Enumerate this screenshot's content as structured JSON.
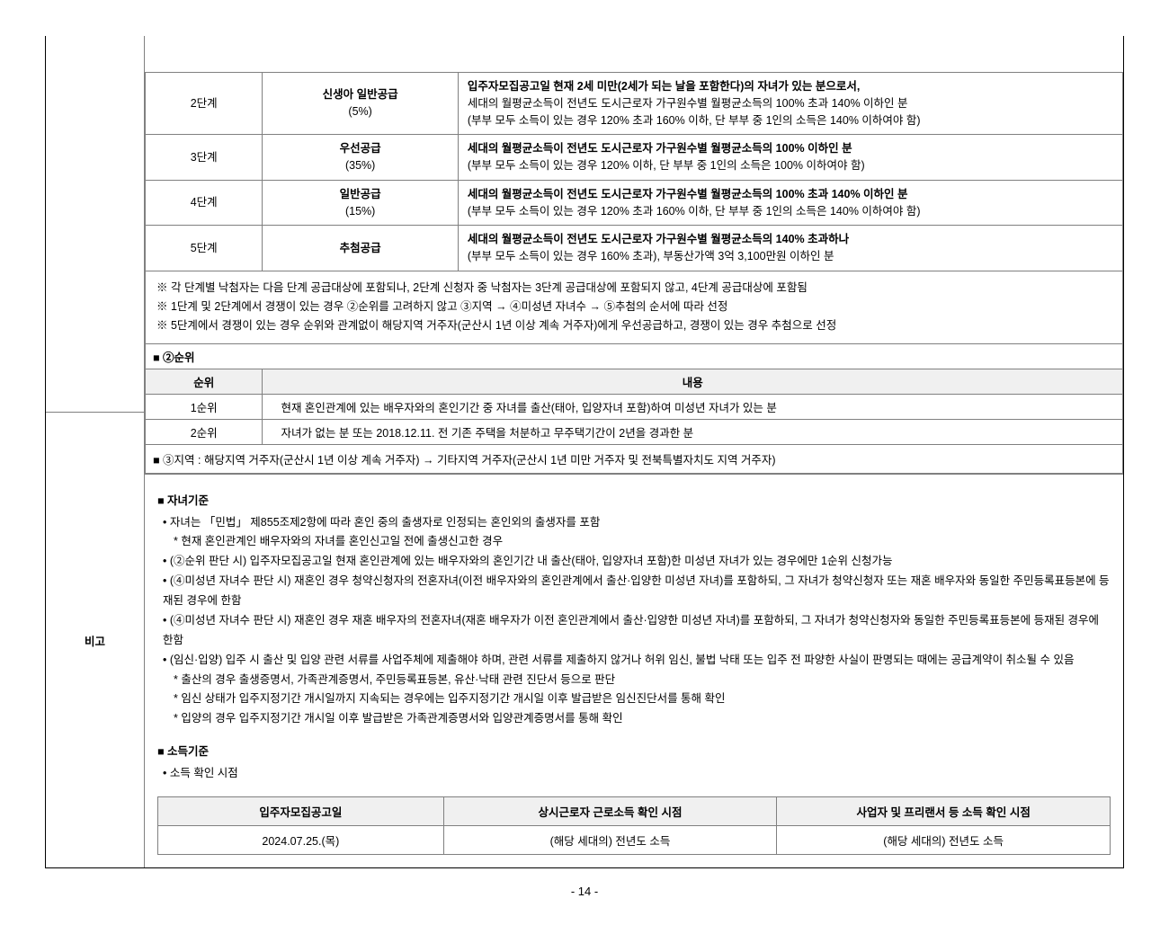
{
  "colors": {
    "border_main": "#000000",
    "border_cell": "#808080",
    "header_bg": "#f0f0f0",
    "text": "#000000",
    "background": "#ffffff"
  },
  "typography": {
    "body_fontsize_pt": 9.5,
    "heading_weight": "bold"
  },
  "left_label": "비고",
  "stages_table": {
    "col_widths_pct": [
      12,
      20,
      68
    ],
    "rows": [
      {
        "stage": "2단계",
        "supply": "신생아 일반공급\n(5%)",
        "desc": "입주자모집공고일 현재 2세 미만(2세가 되는 날을 포함한다)의 자녀가 있는 분으로서,\n세대의 월평균소득이 전년도 도시근로자 가구원수별 월평균소득의 100% 초과 140% 이하인 분\n(부부 모두 소득이 있는 경우 120% 초과 160% 이하, 단 부부 중 1인의 소득은 140% 이하여야 함)"
      },
      {
        "stage": "3단계",
        "supply": "우선공급\n(35%)",
        "desc": "세대의 월평균소득이 전년도 도시근로자 가구원수별 월평균소득의 100% 이하인 분\n(부부 모두 소득이 있는 경우 120% 이하, 단 부부 중 1인의 소득은 100% 이하여야 함)"
      },
      {
        "stage": "4단계",
        "supply": "일반공급\n(15%)",
        "desc": "세대의 월평균소득이 전년도 도시근로자 가구원수별 월평균소득의 100% 초과 140% 이하인 분\n(부부 모두 소득이 있는 경우 120% 초과 160% 이하, 단 부부 중 1인의 소득은 140% 이하여야 함)"
      },
      {
        "stage": "5단계",
        "supply": "추첨공급",
        "desc": "세대의 월평균소득이 전년도 도시근로자 가구원수별 월평균소득의 140% 초과하나\n(부부 모두 소득이 있는 경우 160% 초과), 부동산가액 3억 3,100만원 이하인 분"
      }
    ]
  },
  "notes": [
    "※ 각 단계별 낙첨자는 다음 단계 공급대상에 포함되나, 2단계 신청자 중 낙첨자는 3단계 공급대상에 포함되지 않고, 4단계 공급대상에 포함됨",
    "※ 1단계 및 2단계에서 경쟁이 있는 경우 ②순위를 고려하지 않고 ③지역 → ④미성년 자녀수 → ⑤추첨의 순서에 따라 선정",
    "※ 5단계에서 경쟁이 있는 경우 순위와 관계없이 해당지역 거주자(군산시 1년 이상 계속 거주자)에게 우선공급하고, 경쟁이 있는 경우 추첨으로 선정"
  ],
  "rank_heading": "■ ②순위",
  "rank_table": {
    "headers": [
      "순위",
      "내용"
    ],
    "col_widths_pct": [
      12,
      88
    ],
    "rows": [
      [
        "1순위",
        "현재 혼인관계에 있는 배우자와의 혼인기간 중 자녀를 출산(태아, 입양자녀 포함)하여 미성년 자녀가 있는 분"
      ],
      [
        "2순위",
        "자녀가 없는 분 또는 2018.12.11. 전 기존 주택을 처분하고 무주택기간이 2년을 경과한 분"
      ]
    ]
  },
  "region_line": "■ ③지역 : 해당지역 거주자(군산시 1년 이상 계속 거주자) → 기타지역 거주자(군산시 1년 미만 거주자 및 전북특별자치도 지역 거주자)",
  "child_heading": "■ 자녀기준",
  "child_bullets": [
    {
      "cls": "b",
      "t": "• 자녀는 「민법」 제855조제2항에 따라 혼인 중의 출생자로 인정되는 혼인외의 출생자를 포함"
    },
    {
      "cls": "s",
      "t": "* 현재 혼인관계인 배우자와의 자녀를 혼인신고일 전에 출생신고한 경우"
    },
    {
      "cls": "b",
      "t": "• (②순위 판단 시) 입주자모집공고일 현재 혼인관계에 있는 배우자와의 혼인기간 내 출산(태아, 입양자녀 포함)한 미성년 자녀가 있는 경우에만 1순위 신청가능"
    },
    {
      "cls": "b",
      "t": "• (④미성년 자녀수 판단 시) 재혼인 경우 청약신청자의 전혼자녀(이전 배우자와의 혼인관계에서 출산·입양한 미성년 자녀)를 포함하되, 그 자녀가 청약신청자 또는 재혼 배우자와 동일한 주민등록표등본에 등재된 경우에 한함"
    },
    {
      "cls": "b",
      "t": "• (④미성년 자녀수 판단 시) 재혼인 경우 재혼 배우자의 전혼자녀(재혼 배우자가 이전 혼인관계에서 출산·입양한 미성년 자녀)를 포함하되, 그 자녀가 청약신청자와 동일한 주민등록표등본에 등재된 경우에 한함"
    },
    {
      "cls": "b",
      "t": "• (임신·입양) 입주 시 출산 및 입양 관련 서류를 사업주체에 제출해야 하며, 관련 서류를 제출하지 않거나 허위 임신, 불법 낙태 또는 입주 전 파양한 사실이 판명되는 때에는 공급계약이 취소될 수 있음"
    },
    {
      "cls": "s",
      "t": "* 출산의 경우 출생증명서, 가족관계증명서, 주민등록표등본, 유산·낙태 관련 진단서 등으로 판단"
    },
    {
      "cls": "s",
      "t": "* 임신 상태가 입주지정기간 개시일까지 지속되는 경우에는 입주지정기간 개시일 이후 발급받은 임신진단서를 통해 확인"
    },
    {
      "cls": "s",
      "t": "* 입양의 경우 입주지정기간 개시일 이후 발급받은 가족관계증명서와 입양관계증명서를 통해 확인"
    }
  ],
  "income_heading": "■ 소득기준",
  "income_sub": "• 소득 확인 시점",
  "income_table": {
    "col_widths_pct": [
      30,
      35,
      35
    ],
    "headers": [
      "입주자모집공고일",
      "상시근로자 근로소득 확인 시점",
      "사업자 및 프리랜서 등 소득 확인 시점"
    ],
    "row": [
      "2024.07.25.(목)",
      "(해당 세대의) 전년도 소득",
      "(해당 세대의) 전년도 소득"
    ]
  },
  "page_number": "- 14 -"
}
